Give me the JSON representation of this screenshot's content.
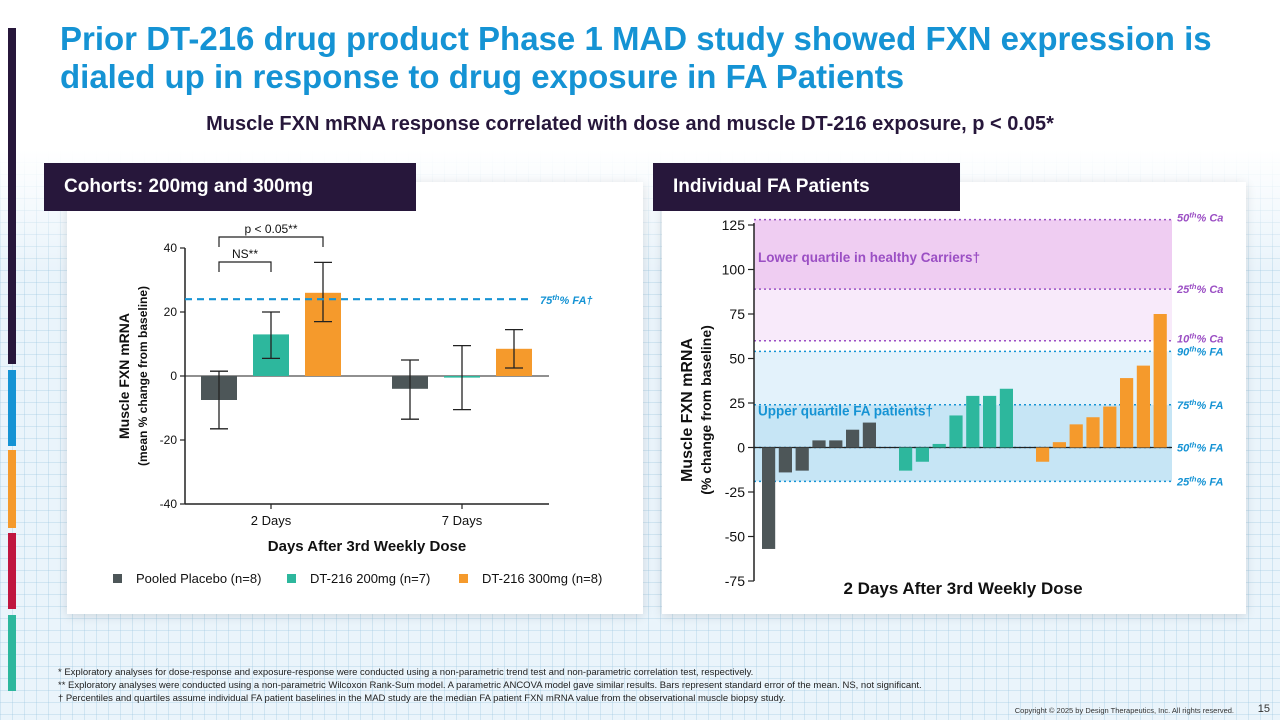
{
  "slide": {
    "title": "Prior DT-216 drug product Phase 1 MAD study showed FXN expression is dialed up in response to drug exposure in FA Patients",
    "subtitle": "Muscle FXN mRNA response correlated with dose and muscle DT-216 exposure, p < 0.05*",
    "page_number": "15",
    "copyright": "Copyright © 2025 by Design Therapeutics, Inc. All rights reserved.",
    "footnotes": [
      "*  Exploratory analyses for dose-response and exposure-response were conducted using a non-parametric trend test and non-parametric correlation test, respectively.",
      "** Exploratory analyses were conducted using a non-parametric Wilcoxon Rank-Sum model. A parametric ANCOVA model gave similar results. Bars represent standard error of the mean. NS, not significant.",
      "† Percentiles and quartiles assume individual FA patient baselines in the MAD study are the median FA patient FXN mRNA value from the observational muscle biopsy study."
    ]
  },
  "colors": {
    "title": "#1593d4",
    "dark": "#27173b",
    "placebo": "#4d5658",
    "dose200": "#2db79d",
    "dose300": "#f59a2c",
    "carrier": "#9b4fc4",
    "fa": "#1593d4",
    "accent_bars": [
      "#27173b",
      "#1593d4",
      "#f59a2c",
      "#c0163f",
      "#2db79d"
    ]
  },
  "left_panel": {
    "header": "Cohorts: 200mg and 300mg"
  },
  "right_panel": {
    "header": "Individual FA Patients"
  },
  "chart_data": [
    {
      "type": "bar",
      "title": "Cohorts: 200mg and 300mg",
      "xlabel": "Days After 3rd Weekly Dose",
      "ylabel_lines": [
        "Muscle FXN mRNA",
        "(mean % change from baseline)"
      ],
      "ylim": [
        -40,
        40
      ],
      "yticks": [
        -40,
        -20,
        0,
        20,
        40
      ],
      "categories": [
        "2 Days",
        "7 Days"
      ],
      "series": [
        {
          "name": "Pooled Placebo (n=8)",
          "color": "#4d5658",
          "values": [
            -7.5,
            -4
          ],
          "sem_low": [
            -16.5,
            -13.5
          ],
          "sem_high": [
            1.5,
            5
          ]
        },
        {
          "name": "DT-216 200mg (n=7)",
          "color": "#2db79d",
          "values": [
            13,
            -0.5
          ],
          "sem_low": [
            5.5,
            -10.5
          ],
          "sem_high": [
            20,
            9.5
          ]
        },
        {
          "name": "DT-216 300mg (n=8)",
          "color": "#f59a2c",
          "values": [
            26,
            8.5
          ],
          "sem_low": [
            17,
            2.5
          ],
          "sem_high": [
            35.5,
            14.5
          ]
        }
      ],
      "reference_line": {
        "label": "75th% FA†",
        "value": 24
      },
      "significance": [
        {
          "label": "NS**",
          "from_series": 0,
          "to_series": 1,
          "category": 0
        },
        {
          "label": "p < 0.05**",
          "from_series": 0,
          "to_series": 2,
          "category": 0
        }
      ],
      "legend_position": "bottom"
    },
    {
      "type": "bar",
      "title": "Individual FA Patients",
      "xlabel": "2 Days After 3rd Weekly Dose",
      "ylabel_lines": [
        "Muscle FXN mRNA",
        "(% change from baseline)"
      ],
      "ylim": [
        -75,
        125
      ],
      "yticks": [
        -75,
        -50,
        -25,
        0,
        25,
        50,
        75,
        100,
        125
      ],
      "groups": [
        {
          "name": "Pooled Placebo",
          "color": "#4d5658",
          "values": [
            -57,
            -14,
            -13,
            4,
            4,
            10,
            14
          ]
        },
        {
          "name": "DT-216 200mg",
          "color": "#2db79d",
          "values": [
            -13,
            -8,
            2,
            18,
            29,
            29,
            33
          ]
        },
        {
          "name": "DT-216 300mg",
          "color": "#f59a2c",
          "values": [
            -8,
            3,
            13,
            17,
            23,
            39,
            46,
            75
          ]
        }
      ],
      "bands": [
        {
          "label": "Lower quartile in healthy Carriers†",
          "from": 89,
          "to": 128,
          "color": "#efcdf2"
        },
        {
          "label": "",
          "from": 60,
          "to": 89,
          "color": "#f8eafa"
        },
        {
          "label": "",
          "from": 54,
          "to": 60,
          "color": "#ffffff"
        },
        {
          "label": "Upper quartile FA patients†",
          "from": 24,
          "to": 54,
          "color": "#e3f2fb"
        },
        {
          "label": "",
          "from": -19,
          "to": 24,
          "color": "#c6e5f5"
        }
      ],
      "reference_lines": [
        {
          "label": "50th% Ca",
          "value": 128,
          "color": "#9b4fc4"
        },
        {
          "label": "25th% Ca",
          "value": 89,
          "color": "#9b4fc4"
        },
        {
          "label": "10th% Ca",
          "value": 60,
          "color": "#9b4fc4"
        },
        {
          "label": "90th% FA",
          "value": 54,
          "color": "#1593d4"
        },
        {
          "label": "75th% FA",
          "value": 24,
          "color": "#1593d4"
        },
        {
          "label": "50th% FA",
          "value": 0,
          "color": "#1593d4"
        },
        {
          "label": "25th% FA",
          "value": -19,
          "color": "#1593d4"
        }
      ]
    }
  ]
}
